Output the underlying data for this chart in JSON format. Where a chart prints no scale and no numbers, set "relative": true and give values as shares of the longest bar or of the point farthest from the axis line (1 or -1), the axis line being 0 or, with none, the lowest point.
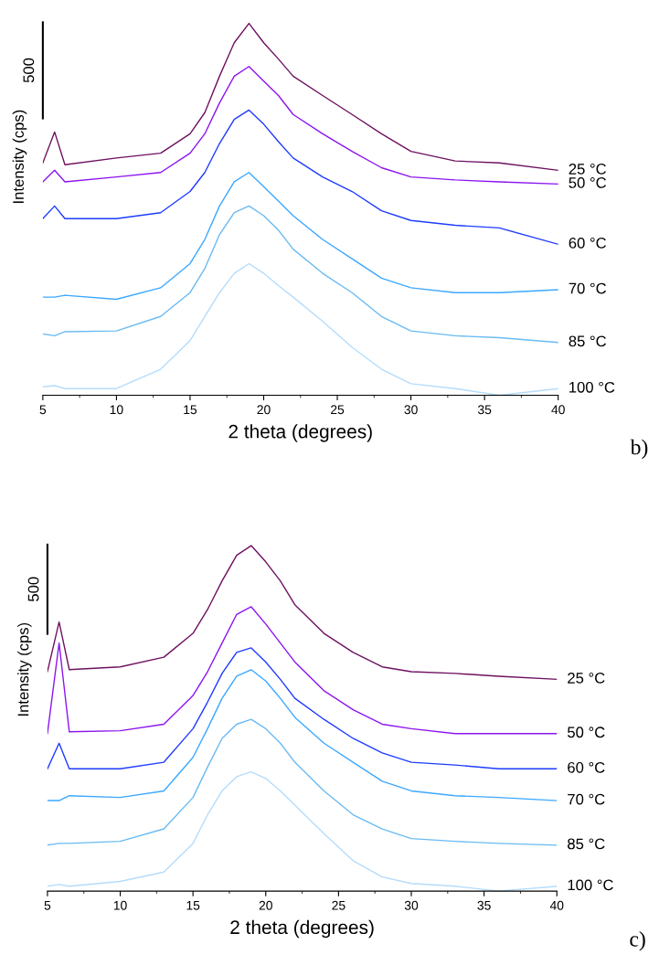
{
  "chart_data": [
    {
      "type": "line",
      "relative": true,
      "xlabel": "2 theta (degrees)",
      "ylabel": "Intensity (cps)",
      "xlim": [
        5,
        40
      ],
      "xticks": [
        5,
        10,
        15,
        20,
        25,
        30,
        35,
        40
      ],
      "tick_labels": "x",
      "grid": false,
      "legend": false,
      "marker": "none",
      "line_style": "solid",
      "annotations": [
        "500",
        "b)"
      ],
      "x": [
        5,
        5.8,
        6.5,
        10,
        13,
        15,
        16,
        17,
        18,
        19,
        20,
        21,
        22,
        24,
        26,
        28,
        30,
        33,
        36,
        40
      ],
      "series": [
        {
          "name": "25 °C",
          "color": "#6e1060",
          "values": [
            0.625,
            0.708,
            0.62,
            0.638,
            0.651,
            0.703,
            0.76,
            0.858,
            0.948,
            1.0,
            0.948,
            0.904,
            0.858,
            0.806,
            0.755,
            0.703,
            0.656,
            0.63,
            0.625,
            0.605
          ]
        },
        {
          "name": "50 °C",
          "color": "#8c14f0",
          "values": [
            0.574,
            0.605,
            0.574,
            0.587,
            0.599,
            0.651,
            0.703,
            0.786,
            0.858,
            0.884,
            0.845,
            0.806,
            0.755,
            0.703,
            0.656,
            0.612,
            0.587,
            0.579,
            0.574,
            0.568
          ]
        },
        {
          "name": "60 °C",
          "color": "#1e3cff",
          "values": [
            0.475,
            0.509,
            0.475,
            0.475,
            0.491,
            0.548,
            0.599,
            0.677,
            0.742,
            0.767,
            0.729,
            0.682,
            0.638,
            0.587,
            0.548,
            0.496,
            0.47,
            0.457,
            0.45,
            0.406
          ]
        },
        {
          "name": "70 °C",
          "color": "#3ca8ff",
          "values": [
            0.264,
            0.264,
            0.269,
            0.258,
            0.289,
            0.354,
            0.419,
            0.509,
            0.574,
            0.599,
            0.561,
            0.522,
            0.483,
            0.419,
            0.367,
            0.315,
            0.289,
            0.276,
            0.276,
            0.284
          ]
        },
        {
          "name": "85 °C",
          "color": "#6abaf2",
          "values": [
            0.165,
            0.16,
            0.171,
            0.173,
            0.212,
            0.276,
            0.341,
            0.432,
            0.491,
            0.509,
            0.483,
            0.444,
            0.393,
            0.328,
            0.276,
            0.212,
            0.173,
            0.16,
            0.155,
            0.142
          ]
        },
        {
          "name": "100 °C",
          "color": "#b4dcfc",
          "values": [
            0.023,
            0.026,
            0.018,
            0.018,
            0.07,
            0.147,
            0.212,
            0.276,
            0.328,
            0.354,
            0.328,
            0.295,
            0.264,
            0.199,
            0.129,
            0.07,
            0.031,
            0.018,
            0.0,
            0.018
          ]
        }
      ]
    },
    {
      "type": "line",
      "relative": true,
      "xlabel": "2 theta (degrees)",
      "ylabel": "Intensity (cps)",
      "xlim": [
        5,
        40
      ],
      "xticks": [
        5,
        10,
        15,
        20,
        25,
        30,
        35,
        40
      ],
      "tick_labels": "x",
      "grid": false,
      "legend": false,
      "marker": "none",
      "line_style": "solid",
      "annotations": [
        "500",
        "c)"
      ],
      "x": [
        5,
        5.8,
        6.5,
        10,
        13,
        15,
        16,
        17,
        18,
        19,
        20,
        21,
        22,
        24,
        26,
        28,
        30,
        33,
        36,
        40
      ],
      "series": [
        {
          "name": "25 °C",
          "color": "#6e1060",
          "values": [
            0.635,
            0.779,
            0.641,
            0.649,
            0.677,
            0.746,
            0.815,
            0.898,
            0.972,
            1.0,
            0.953,
            0.898,
            0.829,
            0.746,
            0.691,
            0.649,
            0.635,
            0.63,
            0.622,
            0.613
          ]
        },
        {
          "name": "50 °C",
          "color": "#8c14f0",
          "values": [
            0.456,
            0.718,
            0.461,
            0.464,
            0.483,
            0.566,
            0.635,
            0.718,
            0.801,
            0.823,
            0.773,
            0.718,
            0.663,
            0.58,
            0.525,
            0.483,
            0.47,
            0.456,
            0.456,
            0.456
          ]
        },
        {
          "name": "60 °C",
          "color": "#1e3cff",
          "values": [
            0.354,
            0.428,
            0.354,
            0.354,
            0.373,
            0.47,
            0.547,
            0.63,
            0.691,
            0.704,
            0.663,
            0.613,
            0.558,
            0.497,
            0.442,
            0.4,
            0.373,
            0.365,
            0.354,
            0.354
          ]
        },
        {
          "name": "70 °C",
          "color": "#3ca8ff",
          "values": [
            0.262,
            0.262,
            0.276,
            0.271,
            0.29,
            0.387,
            0.47,
            0.558,
            0.622,
            0.641,
            0.608,
            0.558,
            0.503,
            0.428,
            0.373,
            0.318,
            0.29,
            0.276,
            0.271,
            0.262
          ]
        },
        {
          "name": "85 °C",
          "color": "#6abaf2",
          "values": [
            0.133,
            0.138,
            0.138,
            0.144,
            0.18,
            0.271,
            0.359,
            0.442,
            0.483,
            0.497,
            0.47,
            0.428,
            0.373,
            0.29,
            0.221,
            0.18,
            0.152,
            0.144,
            0.138,
            0.133
          ]
        },
        {
          "name": "100 °C",
          "color": "#b4dcfc",
          "values": [
            0.014,
            0.019,
            0.014,
            0.028,
            0.055,
            0.138,
            0.221,
            0.29,
            0.331,
            0.345,
            0.326,
            0.29,
            0.249,
            0.166,
            0.088,
            0.041,
            0.022,
            0.014,
            0.0,
            0.014
          ]
        }
      ]
    }
  ]
}
